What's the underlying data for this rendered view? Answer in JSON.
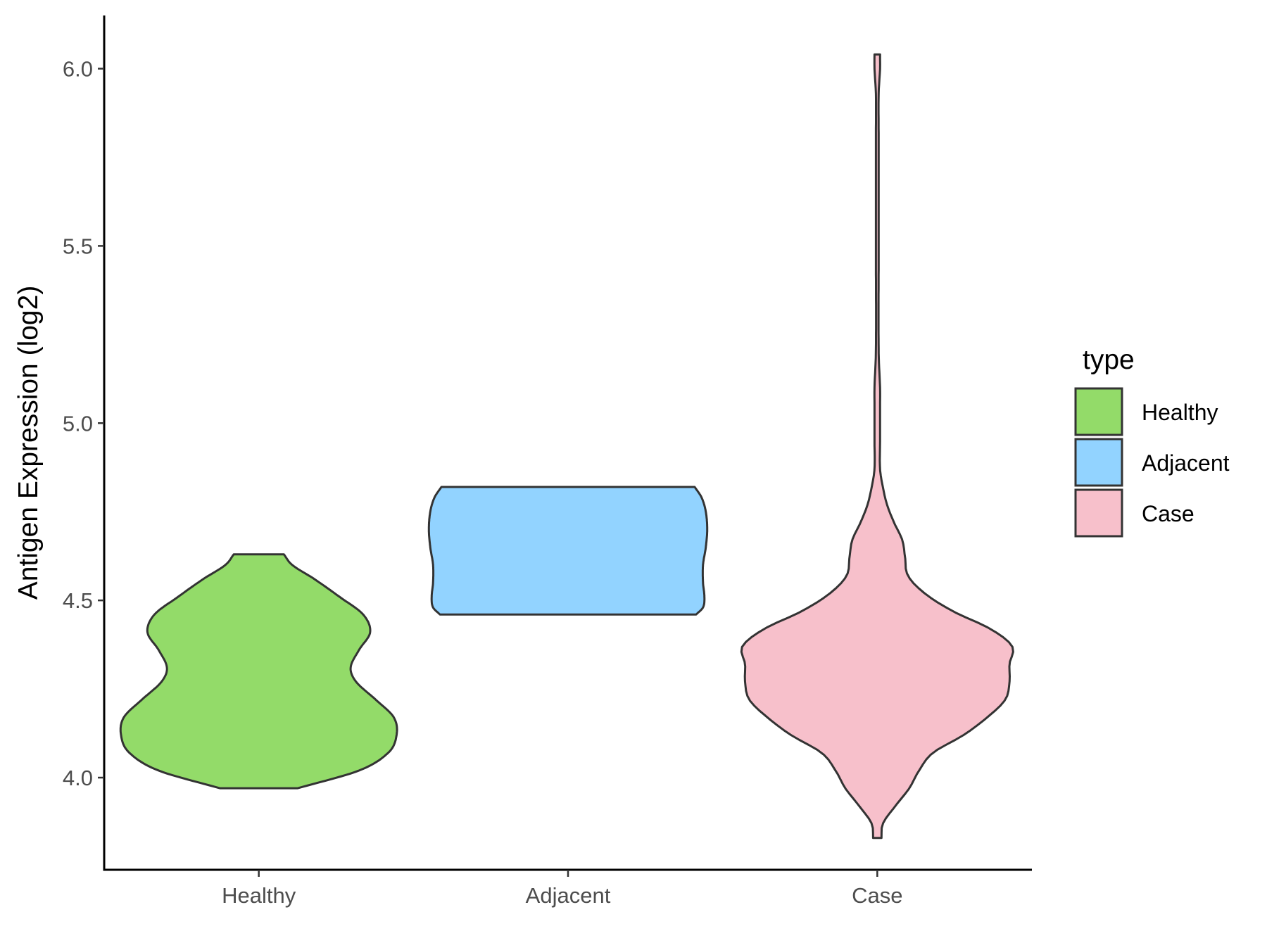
{
  "chart_data": {
    "type": "violin",
    "title": "",
    "xlabel": "",
    "ylabel": "Antigen Expression (log2)",
    "ylim": [
      3.74,
      6.15
    ],
    "yticks": [
      4.0,
      4.5,
      5.0,
      5.5,
      6.0
    ],
    "ytick_labels": [
      "4.0",
      "4.5",
      "5.0",
      "5.5",
      "6.0"
    ],
    "categories": [
      "Healthy",
      "Adjacent",
      "Case"
    ],
    "legend": {
      "title": "type",
      "position": "right",
      "entries": [
        "Healthy",
        "Adjacent",
        "Case"
      ]
    },
    "grid": false,
    "series": [
      {
        "name": "Healthy",
        "color": "#93DB69",
        "range": [
          3.97,
          4.63
        ],
        "profile": [
          [
            3.97,
            0.28
          ],
          [
            4.02,
            0.72
          ],
          [
            4.07,
            0.93
          ],
          [
            4.12,
            0.99
          ],
          [
            4.17,
            0.97
          ],
          [
            4.22,
            0.84
          ],
          [
            4.27,
            0.7
          ],
          [
            4.31,
            0.66
          ],
          [
            4.36,
            0.72
          ],
          [
            4.41,
            0.8
          ],
          [
            4.46,
            0.75
          ],
          [
            4.51,
            0.58
          ],
          [
            4.56,
            0.4
          ],
          [
            4.6,
            0.24
          ],
          [
            4.63,
            0.18
          ]
        ]
      },
      {
        "name": "Adjacent",
        "color": "#92D3FF",
        "range": [
          4.46,
          4.82
        ],
        "profile": [
          [
            4.46,
            0.92
          ],
          [
            4.48,
            0.97
          ],
          [
            4.51,
            0.98
          ],
          [
            4.55,
            0.97
          ],
          [
            4.6,
            0.97
          ],
          [
            4.65,
            0.99
          ],
          [
            4.7,
            1.0
          ],
          [
            4.75,
            0.99
          ],
          [
            4.79,
            0.96
          ],
          [
            4.82,
            0.91
          ]
        ]
      },
      {
        "name": "Case",
        "color": "#F7C0CB",
        "range": [
          3.83,
          6.04
        ],
        "profile": [
          [
            3.83,
            0.03
          ],
          [
            3.87,
            0.04
          ],
          [
            3.92,
            0.13
          ],
          [
            3.97,
            0.23
          ],
          [
            4.02,
            0.3
          ],
          [
            4.07,
            0.4
          ],
          [
            4.12,
            0.62
          ],
          [
            4.17,
            0.79
          ],
          [
            4.22,
            0.92
          ],
          [
            4.27,
            0.95
          ],
          [
            4.32,
            0.95
          ],
          [
            4.37,
            0.97
          ],
          [
            4.42,
            0.81
          ],
          [
            4.47,
            0.54
          ],
          [
            4.52,
            0.34
          ],
          [
            4.57,
            0.22
          ],
          [
            4.62,
            0.2
          ],
          [
            4.67,
            0.18
          ],
          [
            4.72,
            0.12
          ],
          [
            4.77,
            0.07
          ],
          [
            4.82,
            0.04
          ],
          [
            4.87,
            0.02
          ],
          [
            4.95,
            0.02
          ],
          [
            5.05,
            0.02
          ],
          [
            5.1,
            0.02
          ],
          [
            5.2,
            0.01
          ],
          [
            5.5,
            0.01
          ],
          [
            5.8,
            0.01
          ],
          [
            5.93,
            0.01
          ],
          [
            6.0,
            0.02
          ],
          [
            6.04,
            0.02
          ]
        ]
      }
    ]
  }
}
